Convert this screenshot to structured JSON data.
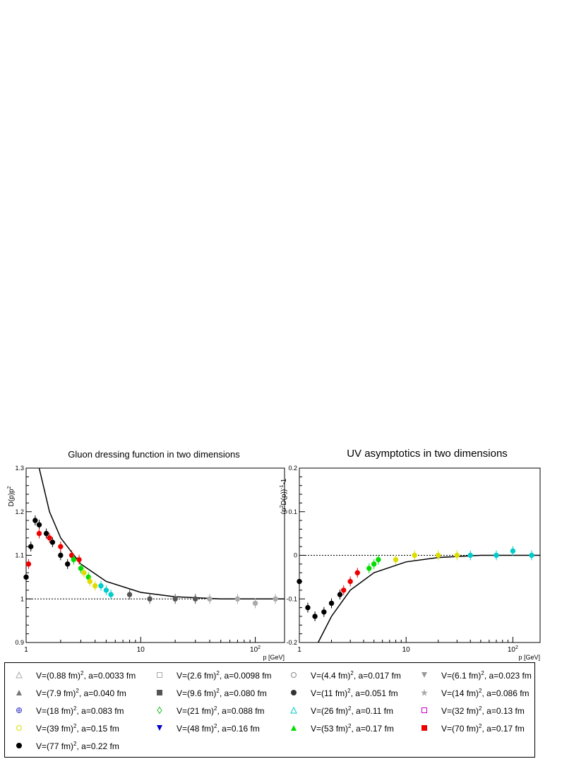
{
  "panels": [
    {
      "title": "Gluon dressing function in two dimensions",
      "ylabel": "D(p)p^2",
      "xlabel": "p [GeV]",
      "xticks": [
        "1",
        "10",
        "10^2"
      ],
      "yticks": [
        "0.9",
        "1",
        "1.1",
        "1.2",
        "1.3"
      ]
    },
    {
      "title": "UV asymptotics in two dimensions",
      "ylabel": "(p^2D(p))^-1-1",
      "xlabel": "p [GeV]",
      "xticks": [
        "1",
        "10",
        "10^2"
      ],
      "yticks": [
        "-0.2",
        "-0.1",
        "0",
        "0.1",
        "0.2"
      ]
    }
  ],
  "legend": [
    {
      "V": "0.88",
      "a": "0.0033",
      "marker": "triangle-up-open",
      "color": "#aaaaaa"
    },
    {
      "V": "2.6",
      "a": "0.0098",
      "marker": "square-open",
      "color": "#aaaaaa"
    },
    {
      "V": "4.4",
      "a": "0.017",
      "marker": "circle-open",
      "color": "#888888"
    },
    {
      "V": "6.1",
      "a": "0.023",
      "marker": "triangle-down",
      "color": "#999999"
    },
    {
      "V": "7.9",
      "a": "0.040",
      "marker": "triangle-up",
      "color": "#777777"
    },
    {
      "V": "9.6",
      "a": "0.080",
      "marker": "square",
      "color": "#555555"
    },
    {
      "V": "11",
      "a": "0.051",
      "marker": "circle",
      "color": "#333333"
    },
    {
      "V": "14",
      "a": "0.086",
      "marker": "star",
      "color": "#aaaaaa"
    },
    {
      "V": "18",
      "a": "0.083",
      "marker": "cross-circle",
      "color": "#4444cc"
    },
    {
      "V": "21",
      "a": "0.088",
      "marker": "diamond-open",
      "color": "#22bb22"
    },
    {
      "V": "26",
      "a": "0.11",
      "marker": "triangle-up-open",
      "color": "#00cccc"
    },
    {
      "V": "32",
      "a": "0.13",
      "marker": "square-open",
      "color": "#cc00cc"
    },
    {
      "V": "39",
      "a": "0.15",
      "marker": "circle-open",
      "color": "#dddd00"
    },
    {
      "V": "48",
      "a": "0.16",
      "marker": "triangle-down",
      "color": "#0000cc"
    },
    {
      "V": "53",
      "a": "0.17",
      "marker": "triangle-up",
      "color": "#00dd00"
    },
    {
      "V": "70",
      "a": "0.17",
      "marker": "square",
      "color": "#ee0000"
    },
    {
      "V": "77",
      "a": "0.22",
      "marker": "circle",
      "color": "#000000"
    }
  ],
  "chart_data": [
    {
      "type": "scatter",
      "title": "Gluon dressing function in two dimensions",
      "xlabel": "p [GeV]",
      "ylabel": "D(p)p^2",
      "xscale": "log",
      "xlim": [
        1,
        180
      ],
      "ylim": [
        0.9,
        1.3
      ],
      "grid": false,
      "reference_line": {
        "y": 1,
        "style": "dotted"
      },
      "series": [
        {
          "name": "V=(77 fm)^2, a=0.22 fm",
          "x": [
            1.0,
            1.1,
            1.2,
            1.3,
            1.5,
            1.7,
            2.0,
            2.3
          ],
          "y": [
            1.05,
            1.12,
            1.18,
            1.17,
            1.15,
            1.13,
            1.1,
            1.08
          ]
        },
        {
          "name": "V=(70 fm)^2, a=0.17 fm",
          "x": [
            1.05,
            1.3,
            1.6,
            2.0,
            2.5,
            2.9
          ],
          "y": [
            1.08,
            1.15,
            1.14,
            1.12,
            1.1,
            1.09
          ]
        },
        {
          "name": "V=(53 fm)^2, a=0.17 fm",
          "x": [
            2.6,
            3.0,
            3.5
          ],
          "y": [
            1.09,
            1.07,
            1.05
          ]
        },
        {
          "name": "V=(39 fm)^2, a=0.15 fm",
          "x": [
            3.2,
            3.6,
            4.0
          ],
          "y": [
            1.06,
            1.04,
            1.03
          ]
        },
        {
          "name": "V=(26 fm)^2, a=0.11 fm",
          "x": [
            4.5,
            5.0,
            5.5
          ],
          "y": [
            1.03,
            1.02,
            1.01
          ]
        },
        {
          "name": "V=(9.6 fm)^2, a=0.080 fm",
          "x": [
            8,
            12,
            20,
            30
          ],
          "y": [
            1.01,
            1.0,
            1.0,
            1.0
          ]
        },
        {
          "name": "V=(0.88 fm)^2, a=0.0033 fm",
          "x": [
            40,
            70,
            100,
            150
          ],
          "y": [
            1.0,
            1.0,
            0.99,
            1.0
          ]
        }
      ],
      "fit_curves": [
        {
          "x": [
            1.3,
            1.6,
            2.0,
            3.0,
            5.0,
            10,
            20,
            50,
            180
          ],
          "y": [
            1.3,
            1.2,
            1.14,
            1.08,
            1.04,
            1.015,
            1.005,
            1.0,
            1.0
          ]
        }
      ]
    },
    {
      "type": "scatter",
      "title": "UV asymptotics in two dimensions",
      "xlabel": "p [GeV]",
      "ylabel": "(p^2D(p))^-1-1",
      "xscale": "log",
      "xlim": [
        1,
        180
      ],
      "ylim": [
        -0.2,
        0.2
      ],
      "grid": false,
      "reference_line": {
        "y": 0,
        "style": "dotted"
      },
      "series": [
        {
          "name": "V=(77 fm)^2, a=0.22 fm",
          "x": [
            1.0,
            1.2,
            1.4,
            1.7,
            2.0,
            2.4
          ],
          "y": [
            -0.06,
            -0.12,
            -0.14,
            -0.13,
            -0.11,
            -0.09
          ]
        },
        {
          "name": "V=(53 fm)^2, a=0.17 fm",
          "x": [
            2.6,
            3.0,
            3.5
          ],
          "y": [
            -0.08,
            -0.06,
            -0.04
          ]
        },
        {
          "name": "V=(26 fm)^2, a=0.11 fm",
          "x": [
            4.5,
            5.0,
            5.5
          ],
          "y": [
            -0.03,
            -0.02,
            -0.01
          ]
        },
        {
          "name": "V=(9.6 fm)^2, a=0.080 fm",
          "x": [
            8,
            12,
            20,
            30
          ],
          "y": [
            -0.01,
            0.0,
            0.0,
            0.0
          ]
        },
        {
          "name": "V=(0.88 fm)^2, a=0.0033 fm",
          "x": [
            40,
            70,
            100,
            150
          ],
          "y": [
            0.0,
            0.0,
            0.01,
            0.0
          ]
        }
      ],
      "fit_curves": [
        {
          "x": [
            1.5,
            2.0,
            3.0,
            5.0,
            10,
            20,
            50,
            180
          ],
          "y": [
            -0.2,
            -0.14,
            -0.08,
            -0.04,
            -0.015,
            -0.005,
            0.0,
            0.0
          ]
        }
      ]
    }
  ]
}
